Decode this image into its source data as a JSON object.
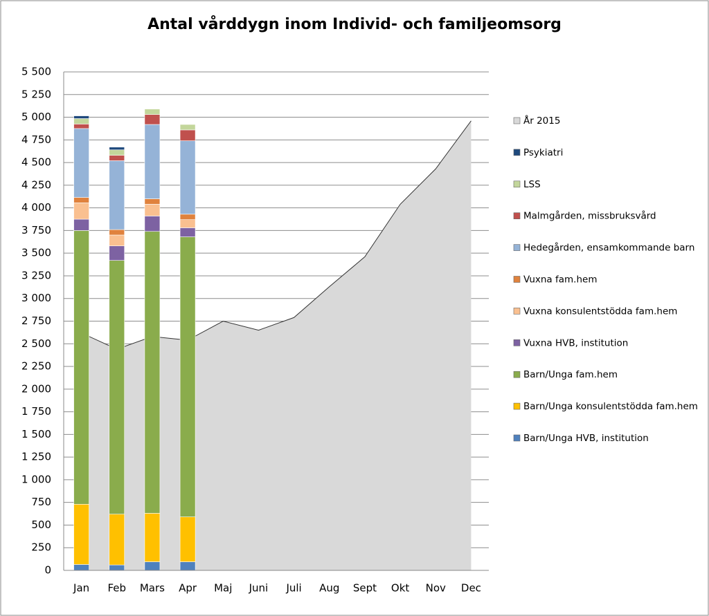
{
  "chart_data": {
    "type": "bar",
    "title": "Antal vårddygn inom Individ- och familjeomsorg",
    "categories": [
      "Jan",
      "Feb",
      "Mars",
      "Apr",
      "Maj",
      "Juni",
      "Juli",
      "Aug",
      "Sept",
      "Okt",
      "Nov",
      "Dec"
    ],
    "ylim": [
      0,
      5500
    ],
    "yticks": [
      0,
      {
        "value": 250,
        "label": "250"
      },
      {
        "value": 500,
        "label": "500"
      },
      {
        "value": 750,
        "label": "750"
      },
      {
        "value": 1000,
        "label": "1 000"
      },
      {
        "value": 1250,
        "label": "1 250"
      },
      {
        "value": 1500,
        "label": "1 500"
      },
      {
        "value": 1750,
        "label": "1 750"
      },
      {
        "value": 2000,
        "label": "2 000"
      },
      {
        "value": 2250,
        "label": "2 250"
      },
      {
        "value": 2500,
        "label": "2 500"
      },
      {
        "value": 2750,
        "label": "2 750"
      },
      {
        "value": 3000,
        "label": "3 000"
      },
      {
        "value": 3250,
        "label": "3 250"
      },
      {
        "value": 3500,
        "label": "3 500"
      },
      {
        "value": 3750,
        "label": "3 750"
      },
      {
        "value": 4000,
        "label": "4 000"
      },
      {
        "value": 4250,
        "label": "4 250"
      },
      {
        "value": 4500,
        "label": "4 500"
      },
      {
        "value": 4750,
        "label": "4 750"
      },
      {
        "value": 5000,
        "label": "5 000"
      },
      {
        "value": 5250,
        "label": "5 250"
      },
      {
        "value": 5500,
        "label": "5 500"
      }
    ],
    "grid": true,
    "legend": "right",
    "series": [
      {
        "name": "Barn/Unga HVB, institution",
        "color": "#4f81bd",
        "type": "bar",
        "values": [
          65,
          60,
          95,
          95,
          null,
          null,
          null,
          null,
          null,
          null,
          null,
          null
        ]
      },
      {
        "name": "Barn/Unga konsulentstödda fam.hem",
        "color": "#ffc000",
        "type": "bar",
        "values": [
          665,
          560,
          535,
          495,
          null,
          null,
          null,
          null,
          null,
          null,
          null,
          null
        ]
      },
      {
        "name": "Barn/Unga fam.hem",
        "color": "#8aac4c",
        "type": "bar",
        "values": [
          3020,
          2800,
          3110,
          3090,
          null,
          null,
          null,
          null,
          null,
          null,
          null,
          null
        ]
      },
      {
        "name": "Vuxna HVB, institution",
        "color": "#7d62a2",
        "type": "bar",
        "values": [
          125,
          160,
          170,
          100,
          null,
          null,
          null,
          null,
          null,
          null,
          null,
          null
        ]
      },
      {
        "name": "Vuxna konsulentstödda fam.hem",
        "color": "#fac090",
        "type": "bar",
        "values": [
          180,
          120,
          130,
          90,
          null,
          null,
          null,
          null,
          null,
          null,
          null,
          null
        ]
      },
      {
        "name": "Vuxna fam.hem",
        "color": "#e0823d",
        "type": "bar",
        "values": [
          60,
          60,
          60,
          60,
          null,
          null,
          null,
          null,
          null,
          null,
          null,
          null
        ]
      },
      {
        "name": "Hedegården, ensamkommande barn",
        "color": "#95b3d7",
        "type": "bar",
        "values": [
          760,
          760,
          820,
          810,
          null,
          null,
          null,
          null,
          null,
          null,
          null,
          null
        ]
      },
      {
        "name": "Malmgården, missbruksvård",
        "color": "#c0504d",
        "type": "bar",
        "values": [
          50,
          60,
          110,
          120,
          null,
          null,
          null,
          null,
          null,
          null,
          null,
          null
        ]
      },
      {
        "name": "LSS",
        "color": "#c3d69b",
        "type": "bar",
        "values": [
          60,
          60,
          60,
          60,
          null,
          null,
          null,
          null,
          null,
          null,
          null,
          null
        ]
      },
      {
        "name": "Psykiatri",
        "color": "#1f497d",
        "type": "bar",
        "values": [
          30,
          30,
          0,
          0,
          null,
          null,
          null,
          null,
          null,
          null,
          null,
          null
        ]
      },
      {
        "name": "År 2015",
        "color": "#d9d9d9",
        "type": "area",
        "values": [
          2620,
          2440,
          2580,
          2540,
          2750,
          2650,
          2790,
          3130,
          3460,
          4040,
          4430,
          4960
        ]
      }
    ]
  }
}
